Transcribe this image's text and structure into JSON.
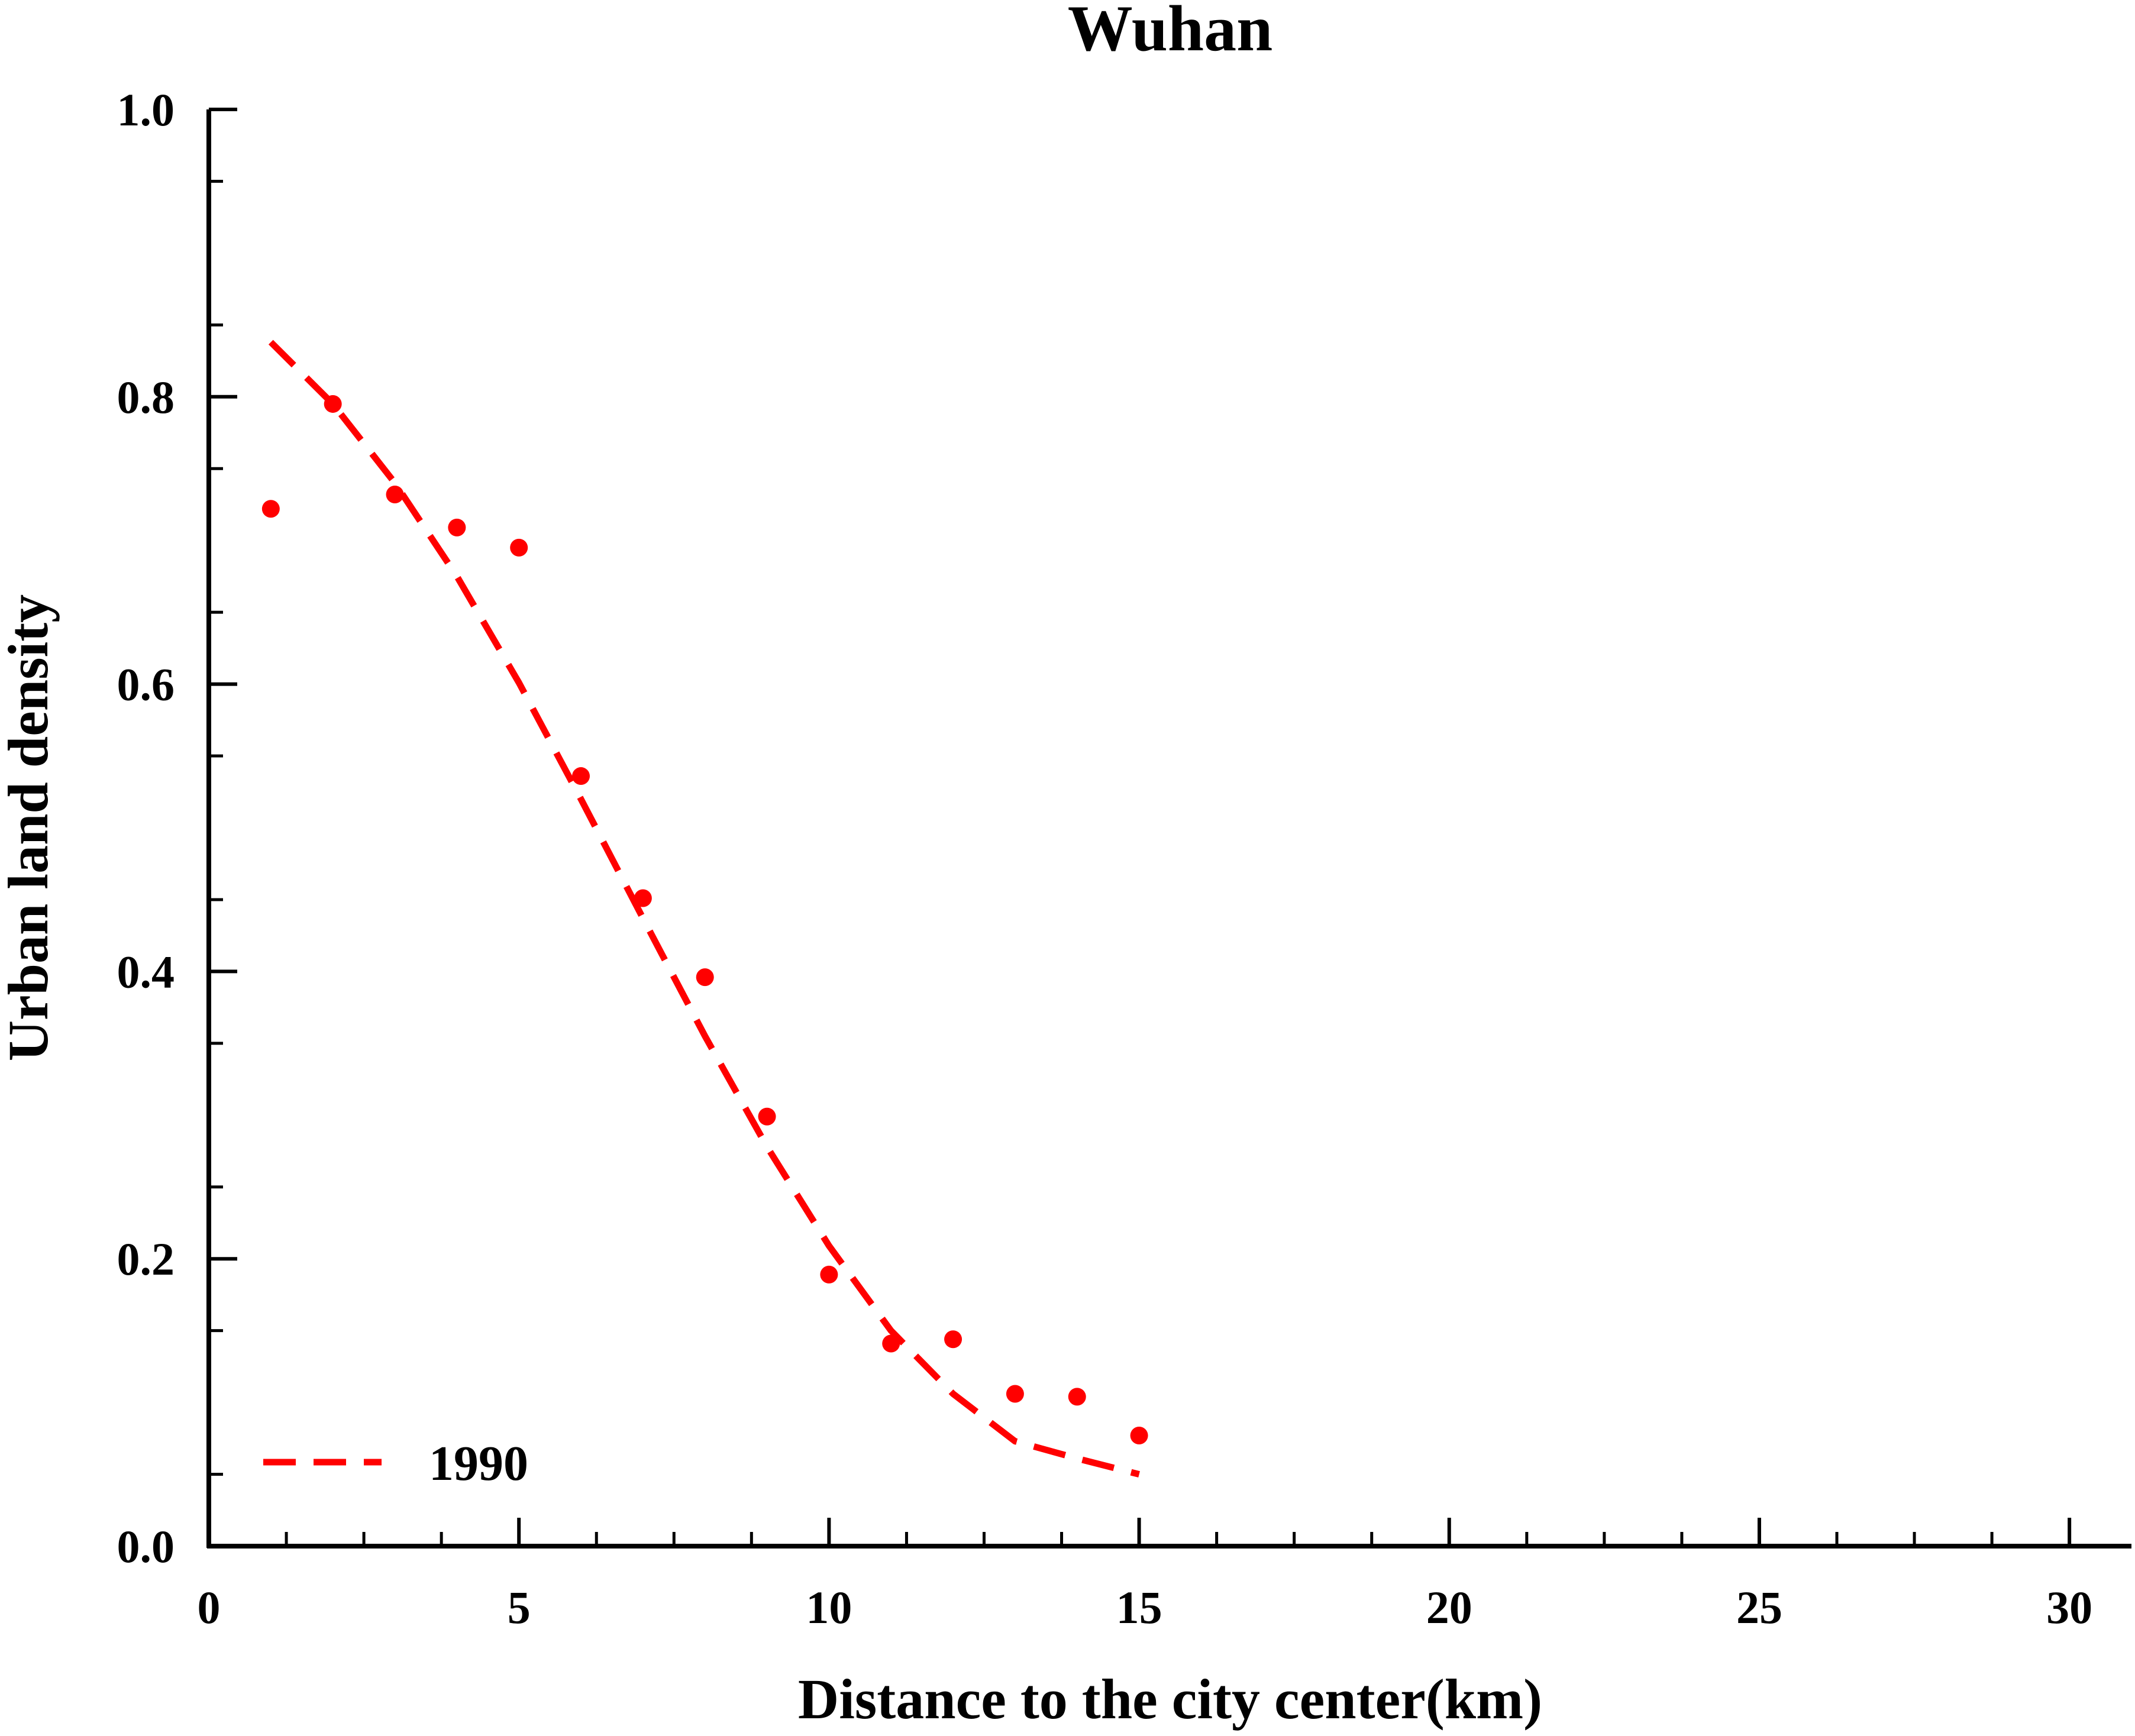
{
  "chart_data": {
    "type": "scatter",
    "title": "Wuhan",
    "xlabel": "Distance to the city center(km)",
    "ylabel": "Urban land density",
    "xlim": [
      0,
      31
    ],
    "ylim": [
      0,
      1.0
    ],
    "x_ticks": [
      0,
      5,
      10,
      15,
      20,
      25,
      30
    ],
    "x_tick_labels": [
      "0",
      "5",
      "10",
      "15",
      "20",
      "25",
      "30"
    ],
    "y_ticks": [
      0.0,
      0.2,
      0.4,
      0.6,
      0.8,
      1.0
    ],
    "y_tick_labels": [
      "0.0",
      "0.2",
      "0.4",
      "0.6",
      "0.8",
      "1.0"
    ],
    "grid": false,
    "legend_position": "bottom-left",
    "series": [
      {
        "name": "1990",
        "color": "#ff0000",
        "points": {
          "x": [
            1,
            2,
            3,
            4,
            5,
            6,
            7,
            8,
            9,
            10,
            11,
            12,
            13,
            14,
            15
          ],
          "y": [
            0.722,
            0.795,
            0.732,
            0.709,
            0.695,
            0.536,
            0.451,
            0.396,
            0.299,
            0.189,
            0.141,
            0.144,
            0.106,
            0.104,
            0.077
          ]
        },
        "fit": {
          "style": "dashed",
          "x": [
            1,
            2,
            3,
            4,
            5,
            6,
            7,
            8,
            9,
            10,
            11,
            12,
            13,
            14,
            15
          ],
          "y": [
            0.838,
            0.795,
            0.74,
            0.675,
            0.601,
            0.52,
            0.437,
            0.355,
            0.278,
            0.209,
            0.15,
            0.106,
            0.073,
            0.061,
            0.05
          ]
        }
      }
    ]
  }
}
